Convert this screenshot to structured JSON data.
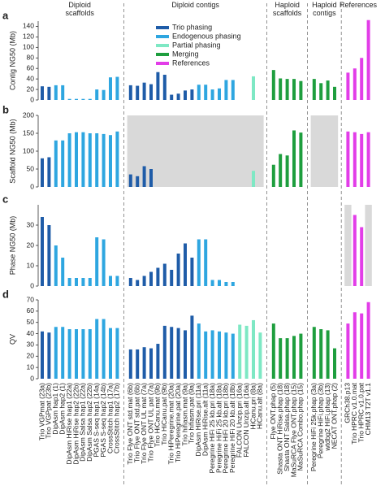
{
  "groups": [
    {
      "name": "Diploid scaffolds",
      "categories": [
        "Trio VGPmat (23a)",
        "Trio VGPpat (23b)",
        "DipAsm hap1 (1)",
        "DipAsm hap2 (1)",
        "DipAsm HiRise hap1 (22a)",
        "DipAsm HiRise hap2 (22b)",
        "DipAsm Salsa hap1 (22a)",
        "DipAsm Salsa hap2 (22b)",
        "PGAS S-seq hap1 (14a)",
        "PGAS S-seq hap2 (14b)",
        "CrossStitch hap1 (17a)",
        "CrossStitch hap2 (17b)"
      ]
    },
    {
      "name": "Diploid contigs",
      "categories": [
        "Trio Flye ONT std.mat (6b)",
        "Trio Flye ONT std.pat (6b)",
        "Trio Flye ONT UL mat (7a)",
        "Trio Flye ONT UL pat (7a)",
        "Trio HiCanu.mat (9b)",
        "Trio HiCanu.pat (9b)",
        "Trio HiPeregrine.mat (20a)",
        "Trio HiPeregrine.pat (20a)",
        "Trio hifiasm.mat (9a)",
        "Trio hifiasm.pat (9a)",
        "DipAsm HiRise.pri (11a)",
        "DipAsm HiRise.alt (11a)",
        "Peregrine HiFi 25 kb.pri (18a)",
        "Peregrine HiFi 25 kb.alt (18a)",
        "Peregrine HiFi 20 kb.pri (18b)",
        "Peregrine HiFi 20 kb.alt (18b)",
        "FALCON Unzip.pri (16a)",
        "FALCON Unzip.alt (16a)",
        "HiCanu.pri (8a)",
        "HiCanu.alt (8a)"
      ]
    },
    {
      "name": "Haploid scaffolds",
      "categories": [
        "Flye ONT.phap (5)",
        "Shasta ONT HiRise.phap (18)",
        "Shasta ONT Salsa.phap (18)",
        "MaSuRCA Flye ONT.phap (15)",
        "MaSuRCA Combo.phap (15)"
      ]
    },
    {
      "name": "Haploid contigs",
      "categories": [
        "Peregrine HiFi 25k.phap (3a)",
        "Peregrine HiFi.phap (3b)",
        "wtdbg2 HiFi.phap (13)",
        "NECAT ONT.phap (2)"
      ]
    },
    {
      "name": "References",
      "categories": [
        "GRCh38.p13",
        "Trio HPRC v1.0.mat",
        "Trio HPRC v1.0.pat",
        "CHM13 T2T v1.1"
      ]
    }
  ],
  "legend": [
    {
      "name": "Trio phasing",
      "color": "#1f5ca8"
    },
    {
      "name": "Endogenous phasing",
      "color": "#2ea6e0"
    },
    {
      "name": "Partial phasing",
      "color": "#7ee8c4"
    },
    {
      "name": "Merging",
      "color": "#1e9e3e"
    },
    {
      "name": "References",
      "color": "#e23de8"
    }
  ],
  "colors": [
    "#1f5ca8",
    "#1f5ca8",
    "#2ea6e0",
    "#2ea6e0",
    "#2ea6e0",
    "#2ea6e0",
    "#2ea6e0",
    "#2ea6e0",
    "#2ea6e0",
    "#2ea6e0",
    "#2ea6e0",
    "#2ea6e0",
    "#1f5ca8",
    "#1f5ca8",
    "#1f5ca8",
    "#1f5ca8",
    "#1f5ca8",
    "#1f5ca8",
    "#1f5ca8",
    "#1f5ca8",
    "#1f5ca8",
    "#1f5ca8",
    "#2ea6e0",
    "#2ea6e0",
    "#2ea6e0",
    "#2ea6e0",
    "#2ea6e0",
    "#2ea6e0",
    "#7ee8c4",
    "#7ee8c4",
    "#7ee8c4",
    "#7ee8c4",
    "#1e9e3e",
    "#1e9e3e",
    "#1e9e3e",
    "#1e9e3e",
    "#1e9e3e",
    "#1e9e3e",
    "#1e9e3e",
    "#1e9e3e",
    "#1e9e3e",
    "#e23de8",
    "#e23de8",
    "#e23de8",
    "#e23de8"
  ],
  "chart_data": [
    {
      "type": "bar",
      "label": "a",
      "y_label": "Contig NG50 (Mb)",
      "ylim": [
        0,
        150
      ],
      "yticks": [
        0,
        20,
        40,
        60,
        80,
        100,
        120,
        140
      ],
      "values": [
        26,
        25,
        28,
        28,
        2,
        2,
        2,
        2,
        20,
        19,
        43,
        44,
        28,
        27,
        33,
        30,
        53,
        48,
        10,
        12,
        18,
        20,
        29,
        29,
        20,
        22,
        38,
        38,
        null,
        null,
        45,
        null,
        57,
        41,
        40,
        40,
        36,
        40,
        32,
        37,
        25,
        52,
        60,
        80,
        152
      ]
    },
    {
      "type": "bar",
      "label": "b",
      "y_label": "Scaffold NG50 (Mb)",
      "ylim": [
        0,
        200
      ],
      "yticks": [
        0,
        50,
        100,
        150,
        200
      ],
      "values": [
        80,
        83,
        130,
        130,
        150,
        153,
        153,
        150,
        150,
        148,
        145,
        155,
        35,
        30,
        58,
        50,
        null,
        null,
        null,
        null,
        null,
        null,
        null,
        null,
        null,
        null,
        null,
        null,
        null,
        null,
        45,
        null,
        62,
        92,
        88,
        158,
        152,
        null,
        null,
        null,
        null,
        155,
        153,
        148,
        153
      ]
    },
    {
      "type": "bar",
      "label": "c",
      "y_label": "Phase NG50 (Mb)",
      "ylim": [
        0,
        40
      ],
      "yticks": [
        0,
        10,
        20,
        30
      ],
      "values": [
        34,
        30,
        20,
        14,
        4,
        4,
        4,
        4,
        24,
        23,
        5,
        5,
        4,
        3,
        5,
        7,
        9,
        11,
        8,
        16,
        21,
        14,
        23,
        23,
        3,
        3,
        2,
        2,
        null,
        null,
        null,
        null,
        null,
        null,
        null,
        null,
        null,
        null,
        null,
        null,
        null,
        null,
        35,
        29,
        null
      ]
    },
    {
      "type": "bar",
      "label": "d",
      "y_label": "QV",
      "ylim": [
        0,
        70
      ],
      "yticks": [
        0,
        10,
        20,
        30,
        40,
        50,
        60,
        70
      ],
      "values": [
        42,
        41,
        46,
        46,
        44,
        44,
        44,
        44,
        53,
        53,
        45,
        45,
        26,
        26,
        28,
        27,
        31,
        47,
        46,
        45,
        43,
        56,
        49,
        42,
        43,
        42,
        41,
        40,
        48,
        47,
        52,
        41,
        49,
        36,
        36,
        38,
        40,
        46,
        44,
        43,
        27,
        49,
        59,
        58,
        68
      ]
    }
  ]
}
